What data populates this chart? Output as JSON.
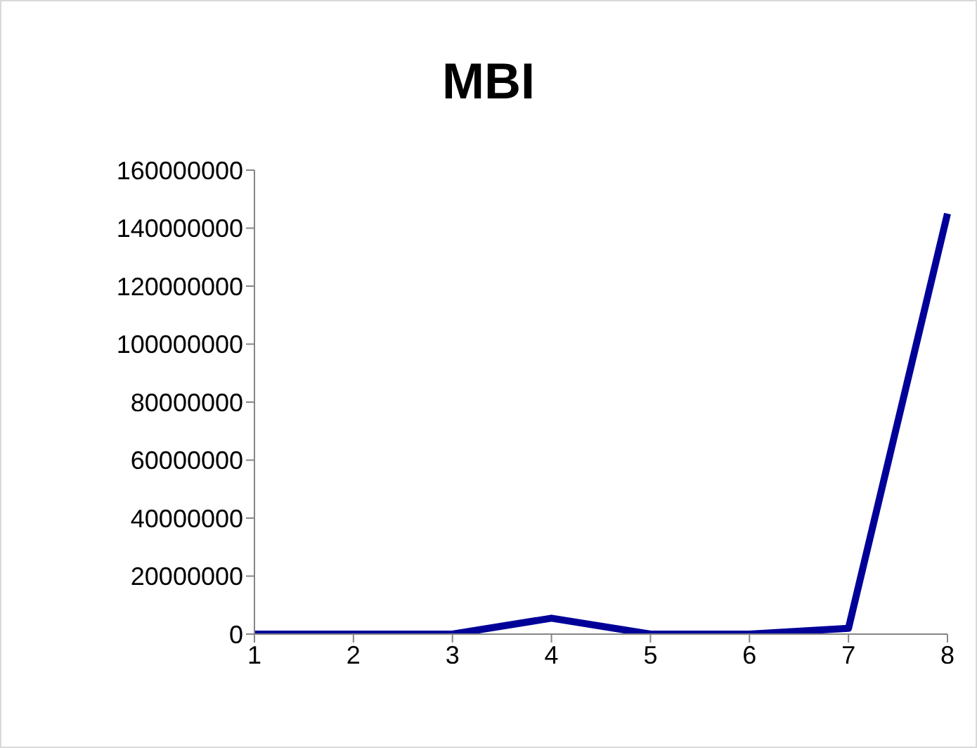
{
  "chart_data": {
    "type": "line",
    "title": "MBI",
    "categories": [
      "1",
      "2",
      "3",
      "4",
      "5",
      "6",
      "7",
      "8"
    ],
    "series": [
      {
        "color": "#000099",
        "values": [
          0,
          0,
          0,
          5500000,
          0,
          0,
          2000000,
          145000000
        ]
      }
    ],
    "ylim": [
      0,
      160000000
    ],
    "yticks": [
      0,
      20000000,
      40000000,
      60000000,
      80000000,
      100000000,
      120000000,
      140000000,
      160000000
    ],
    "grid": false,
    "legend": false,
    "marker": "none",
    "line_style": "solid"
  }
}
